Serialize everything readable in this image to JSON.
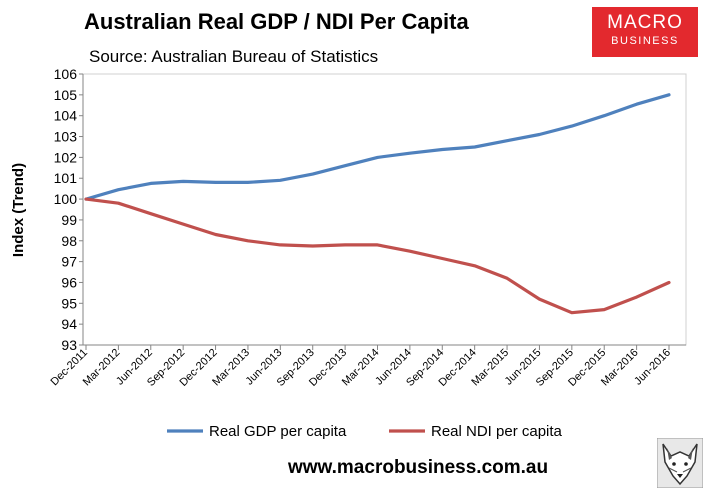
{
  "header": {
    "title": "Australian Real GDP / NDI Per Capita",
    "subtitle": "Source: Australian Bureau of Statistics"
  },
  "logo": {
    "line1": "MACRO",
    "line2": "BUSINESS",
    "color": "#e3292e"
  },
  "footer": {
    "url": "www.macrobusiness.com.au"
  },
  "chart_data": {
    "type": "line",
    "title": "Australian Real GDP / NDI Per Capita",
    "subtitle": "Source: Australian Bureau of Statistics",
    "xlabel": "",
    "ylabel": "Index (Trend)",
    "ylim": [
      93,
      106
    ],
    "yticks": [
      93,
      94,
      95,
      96,
      97,
      98,
      99,
      100,
      101,
      102,
      103,
      104,
      105,
      106
    ],
    "grid": false,
    "legend_position": "bottom",
    "categories": [
      "Dec-2011",
      "Mar-2012",
      "Jun-2012",
      "Sep-2012",
      "Dec-2012",
      "Mar-2013",
      "Jun-2013",
      "Sep-2013",
      "Dec-2013",
      "Mar-2014",
      "Jun-2014",
      "Sep-2014",
      "Dec-2014",
      "Mar-2015",
      "Jun-2015",
      "Sep-2015",
      "Dec-2015",
      "Mar-2016",
      "Jun-2016"
    ],
    "series": [
      {
        "name": "Real GDP per capita",
        "color": "#4f81bd",
        "values": [
          100.0,
          100.45,
          100.75,
          100.85,
          100.8,
          100.8,
          100.9,
          101.2,
          101.6,
          102.0,
          102.2,
          102.38,
          102.5,
          102.8,
          103.1,
          103.5,
          104.0,
          104.55,
          105.0
        ]
      },
      {
        "name": "Real NDI per capita",
        "color": "#c0504d",
        "values": [
          100.0,
          99.8,
          99.3,
          98.8,
          98.3,
          98.0,
          97.8,
          97.75,
          97.8,
          97.8,
          97.5,
          97.15,
          96.8,
          96.2,
          95.2,
          94.55,
          94.7,
          95.3,
          96.0
        ]
      }
    ]
  }
}
